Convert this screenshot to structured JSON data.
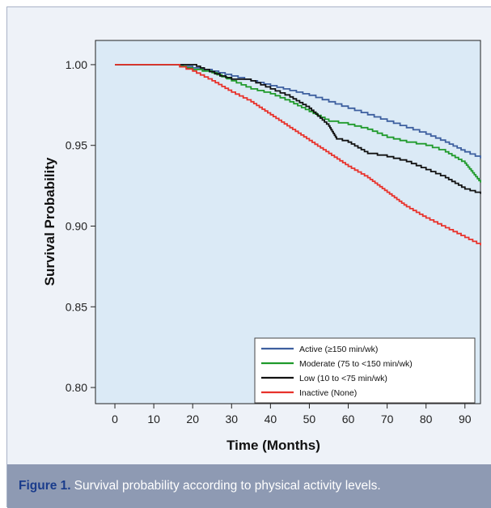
{
  "caption": {
    "label": "Figure 1.",
    "text": "Survival probability according to physical activity levels."
  },
  "chart_data": {
    "type": "line",
    "xlabel": "Time (Months)",
    "ylabel": "Survival Probability",
    "xlim": [
      -5,
      94
    ],
    "ylim": [
      0.79,
      1.015
    ],
    "xticks": [
      0,
      10,
      20,
      30,
      40,
      50,
      60,
      70,
      80,
      90
    ],
    "yticks": [
      0.8,
      0.85,
      0.9,
      0.95,
      1.0
    ],
    "ytick_labels": [
      "0.80",
      "0.85",
      "0.90",
      "0.95",
      "1.00"
    ],
    "grid": false,
    "legend_position": "bottom-right",
    "plot_background": "#dbeaf6",
    "series": [
      {
        "name": "Active (≥150 min/wk)",
        "color": "#3d5f9f",
        "x": [
          0,
          15,
          20,
          25,
          30,
          35,
          40,
          45,
          50,
          55,
          60,
          65,
          70,
          75,
          80,
          85,
          90,
          94
        ],
        "y": [
          1.0,
          1.0,
          0.998,
          0.996,
          0.993,
          0.99,
          0.987,
          0.984,
          0.981,
          0.977,
          0.973,
          0.969,
          0.965,
          0.961,
          0.957,
          0.952,
          0.946,
          0.942
        ]
      },
      {
        "name": "Moderate (75 to <150 min/wk)",
        "color": "#1f9a2b",
        "x": [
          0,
          15,
          20,
          25,
          30,
          35,
          40,
          45,
          50,
          55,
          60,
          65,
          70,
          75,
          80,
          85,
          90,
          92,
          94
        ],
        "y": [
          1.0,
          1.0,
          0.997,
          0.995,
          0.99,
          0.985,
          0.982,
          0.977,
          0.971,
          0.965,
          0.963,
          0.96,
          0.955,
          0.952,
          0.95,
          0.946,
          0.939,
          0.933,
          0.927
        ]
      },
      {
        "name": "Low (10 to <75 min/wk)",
        "color": "#111111",
        "x": [
          0,
          20,
          23,
          27,
          30,
          35,
          40,
          45,
          50,
          55,
          57,
          60,
          65,
          70,
          75,
          80,
          85,
          90,
          94
        ],
        "y": [
          1.0,
          1.0,
          0.997,
          0.993,
          0.991,
          0.99,
          0.985,
          0.98,
          0.973,
          0.962,
          0.954,
          0.952,
          0.945,
          0.943,
          0.94,
          0.935,
          0.93,
          0.923,
          0.92
        ]
      },
      {
        "name": "Inactive (None)",
        "color": "#e8322b",
        "x": [
          0,
          15,
          20,
          25,
          30,
          35,
          40,
          45,
          50,
          55,
          60,
          65,
          70,
          75,
          80,
          85,
          90,
          94
        ],
        "y": [
          1.0,
          1.0,
          0.996,
          0.99,
          0.983,
          0.977,
          0.969,
          0.961,
          0.953,
          0.945,
          0.937,
          0.93,
          0.921,
          0.912,
          0.905,
          0.899,
          0.893,
          0.888
        ]
      }
    ]
  }
}
